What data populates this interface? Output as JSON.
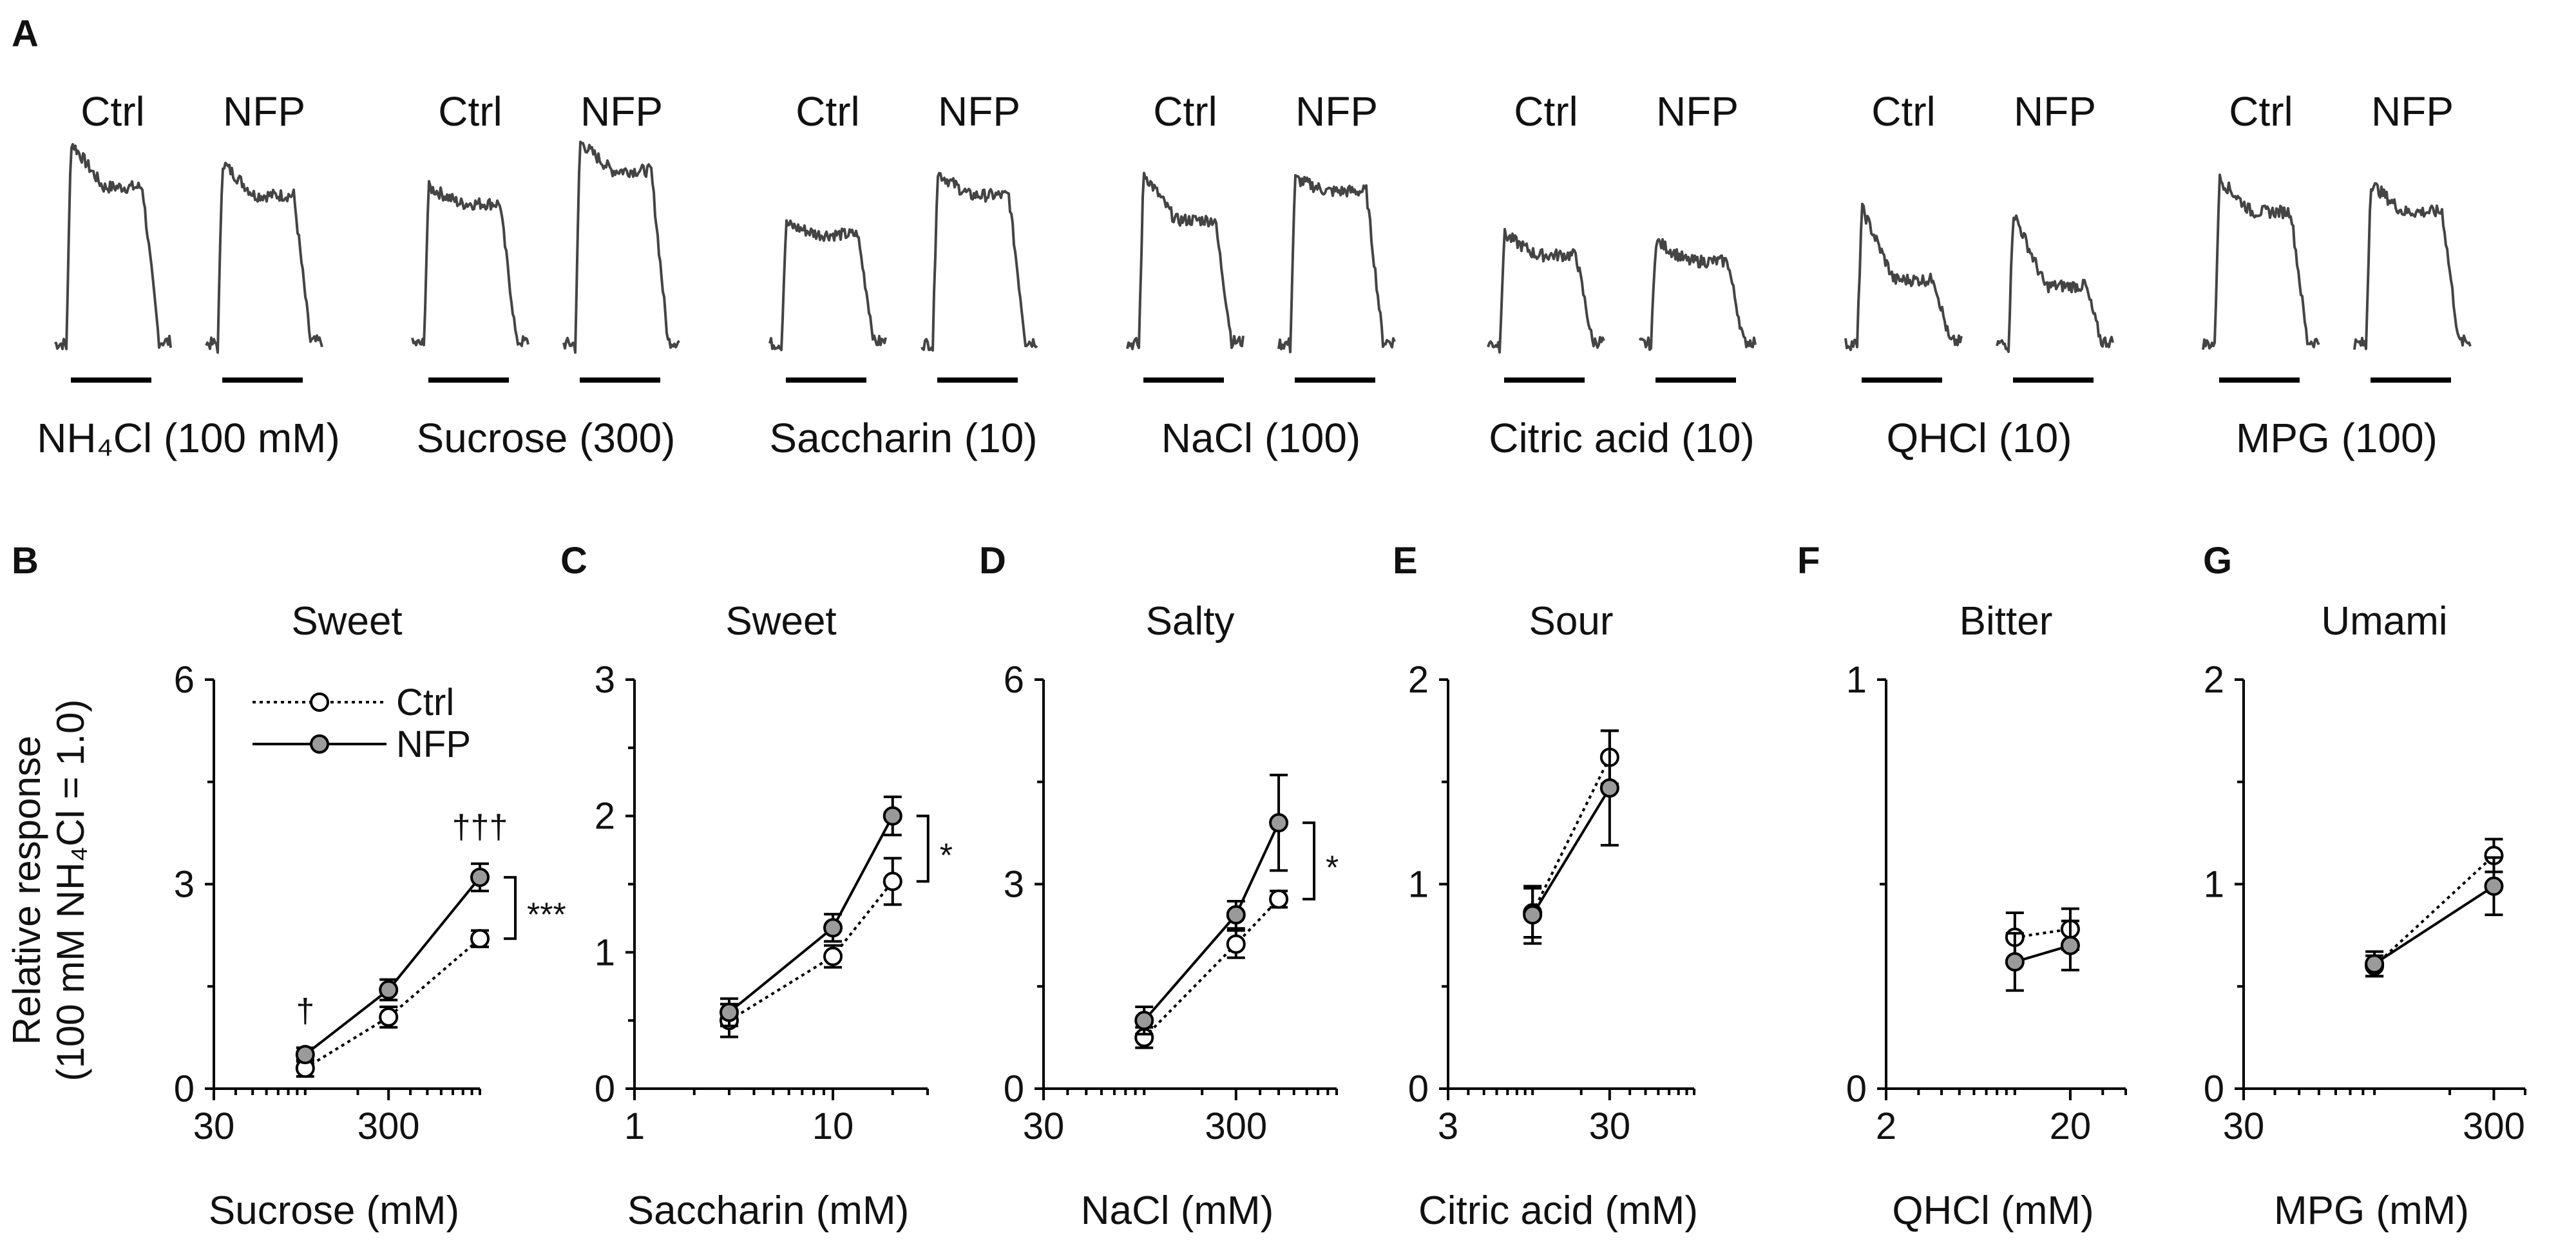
{
  "figure": {
    "panel_a": {
      "label": "A",
      "ctrl_label": "Ctrl",
      "nfp_label": "NFP",
      "groups": [
        {
          "stimulus": "NH₄Cl (100 mM)",
          "ctrl_peak": 1.0,
          "ctrl_plateau": 0.78,
          "nfp_peak": 0.9,
          "nfp_plateau": 0.74
        },
        {
          "stimulus": "Sucrose (300)",
          "ctrl_peak": 0.78,
          "ctrl_plateau": 0.7,
          "nfp_peak": 1.0,
          "nfp_plateau": 0.86
        },
        {
          "stimulus": "Saccharin (10)",
          "ctrl_peak": 0.6,
          "ctrl_plateau": 0.55,
          "nfp_peak": 0.85,
          "nfp_plateau": 0.74
        },
        {
          "stimulus": "NaCl (100)",
          "ctrl_peak": 0.85,
          "ctrl_plateau": 0.62,
          "nfp_peak": 0.82,
          "nfp_plateau": 0.76
        },
        {
          "stimulus": "Citric acid (10)",
          "ctrl_peak": 0.55,
          "ctrl_plateau": 0.45,
          "nfp_peak": 0.52,
          "nfp_plateau": 0.42
        },
        {
          "stimulus": "QHCl (10)",
          "ctrl_peak": 0.68,
          "ctrl_plateau": 0.33,
          "nfp_peak": 0.66,
          "nfp_plateau": 0.3
        },
        {
          "stimulus": "MPG (100)",
          "ctrl_peak": 0.82,
          "ctrl_plateau": 0.66,
          "nfp_peak": 0.8,
          "nfp_plateau": 0.66
        }
      ]
    },
    "y_axis_label_line1": "Relative response",
    "y_axis_label_line2": "(100 mM NH₄Cl = 1.0)",
    "legend": {
      "ctrl": "Ctrl",
      "nfp": "NFP"
    }
  },
  "chart_data": [
    {
      "type": "line",
      "panel": "B",
      "title": "Sweet",
      "xlabel": "Sucrose (mM)",
      "xscale": "log",
      "xlim": [
        30,
        1000
      ],
      "xticks": [
        30,
        300
      ],
      "xtick_labels": [
        "30",
        "300"
      ],
      "ylim": [
        0,
        6
      ],
      "yticks": [
        0,
        3,
        6
      ],
      "ytick_labels": [
        "0",
        "3",
        "6"
      ],
      "x": [
        100,
        300,
        1000
      ],
      "series": [
        {
          "name": "Ctrl",
          "values": [
            0.3,
            1.05,
            2.2
          ],
          "errors": [
            0.12,
            0.15,
            0.12
          ]
        },
        {
          "name": "NFP",
          "values": [
            0.5,
            1.45,
            3.1
          ],
          "errors": [
            0.1,
            0.15,
            0.2
          ]
        }
      ],
      "point_marks": [
        {
          "x": 100,
          "text": "†"
        },
        {
          "x": 1000,
          "text": "†††"
        }
      ],
      "bracket": "***"
    },
    {
      "type": "line",
      "panel": "C",
      "title": "Sweet",
      "xlabel": "Saccharin (mM)",
      "xscale": "log",
      "xlim": [
        1,
        30
      ],
      "xticks": [
        1,
        10
      ],
      "xtick_labels": [
        "1",
        "10"
      ],
      "ylim": [
        0,
        3
      ],
      "yticks": [
        0,
        1,
        2,
        3
      ],
      "ytick_labels": [
        "0",
        "1",
        "2",
        "3"
      ],
      "x": [
        3,
        10,
        20
      ],
      "series": [
        {
          "name": "Ctrl",
          "values": [
            0.5,
            0.97,
            1.52
          ],
          "errors": [
            0.12,
            0.08,
            0.17
          ]
        },
        {
          "name": "NFP",
          "values": [
            0.56,
            1.18,
            2.0
          ],
          "errors": [
            0.1,
            0.1,
            0.14
          ]
        }
      ],
      "bracket": "*"
    },
    {
      "type": "line",
      "panel": "D",
      "title": "Salty",
      "xlabel": "NaCl (mM)",
      "xscale": "log",
      "xlim": [
        30,
        1000
      ],
      "xticks": [
        30,
        300
      ],
      "xtick_labels": [
        "30",
        "300"
      ],
      "ylim": [
        0,
        6
      ],
      "yticks": [
        0,
        3,
        6
      ],
      "ytick_labels": [
        "0",
        "3",
        "6"
      ],
      "x": [
        100,
        300,
        500
      ],
      "series": [
        {
          "name": "Ctrl",
          "values": [
            0.75,
            2.12,
            2.78
          ],
          "errors": [
            0.15,
            0.2,
            0.12
          ]
        },
        {
          "name": "NFP",
          "values": [
            1.0,
            2.55,
            3.9
          ],
          "errors": [
            0.2,
            0.2,
            0.7
          ]
        }
      ],
      "bracket": "*"
    },
    {
      "type": "line",
      "panel": "E",
      "title": "Sour",
      "xlabel": "Citric acid (mM)",
      "xscale": "log",
      "xlim": [
        3,
        100
      ],
      "xticks": [
        3,
        30
      ],
      "xtick_labels": [
        "3",
        "30"
      ],
      "ylim": [
        0,
        2
      ],
      "yticks": [
        0,
        1,
        2
      ],
      "ytick_labels": [
        "0",
        "1",
        "2"
      ],
      "x": [
        10,
        30
      ],
      "series": [
        {
          "name": "Ctrl",
          "values": [
            0.86,
            1.62
          ],
          "errors": [
            0.12,
            0.13
          ]
        },
        {
          "name": "NFP",
          "values": [
            0.85,
            1.47
          ],
          "errors": [
            0.14,
            0.28
          ]
        }
      ]
    },
    {
      "type": "line",
      "panel": "F",
      "title": "Bitter",
      "xlabel": "QHCl (mM)",
      "xscale": "log",
      "xlim": [
        2,
        40
      ],
      "xticks": [
        2,
        20
      ],
      "xtick_labels": [
        "2",
        "20"
      ],
      "ylim": [
        0,
        1
      ],
      "yticks": [
        0,
        1
      ],
      "ytick_labels": [
        "0",
        "1"
      ],
      "x": [
        10,
        20
      ],
      "series": [
        {
          "name": "Ctrl",
          "values": [
            0.37,
            0.39
          ],
          "errors": [
            0.06,
            0.05
          ]
        },
        {
          "name": "NFP",
          "values": [
            0.31,
            0.35
          ],
          "errors": [
            0.07,
            0.06
          ]
        }
      ]
    },
    {
      "type": "line",
      "panel": "G",
      "title": "Umami",
      "xlabel": "MPG (mM)",
      "xscale": "log",
      "xlim": [
        30,
        400
      ],
      "xticks": [
        30,
        300
      ],
      "xtick_labels": [
        "30",
        "300"
      ],
      "ylim": [
        0,
        2
      ],
      "yticks": [
        0,
        1,
        2
      ],
      "ytick_labels": [
        "0",
        "1",
        "2"
      ],
      "x": [
        100,
        300
      ],
      "series": [
        {
          "name": "Ctrl",
          "values": [
            0.6,
            1.14
          ],
          "errors": [
            0.05,
            0.08
          ]
        },
        {
          "name": "NFP",
          "values": [
            0.61,
            0.99
          ],
          "errors": [
            0.06,
            0.14
          ]
        }
      ]
    }
  ]
}
